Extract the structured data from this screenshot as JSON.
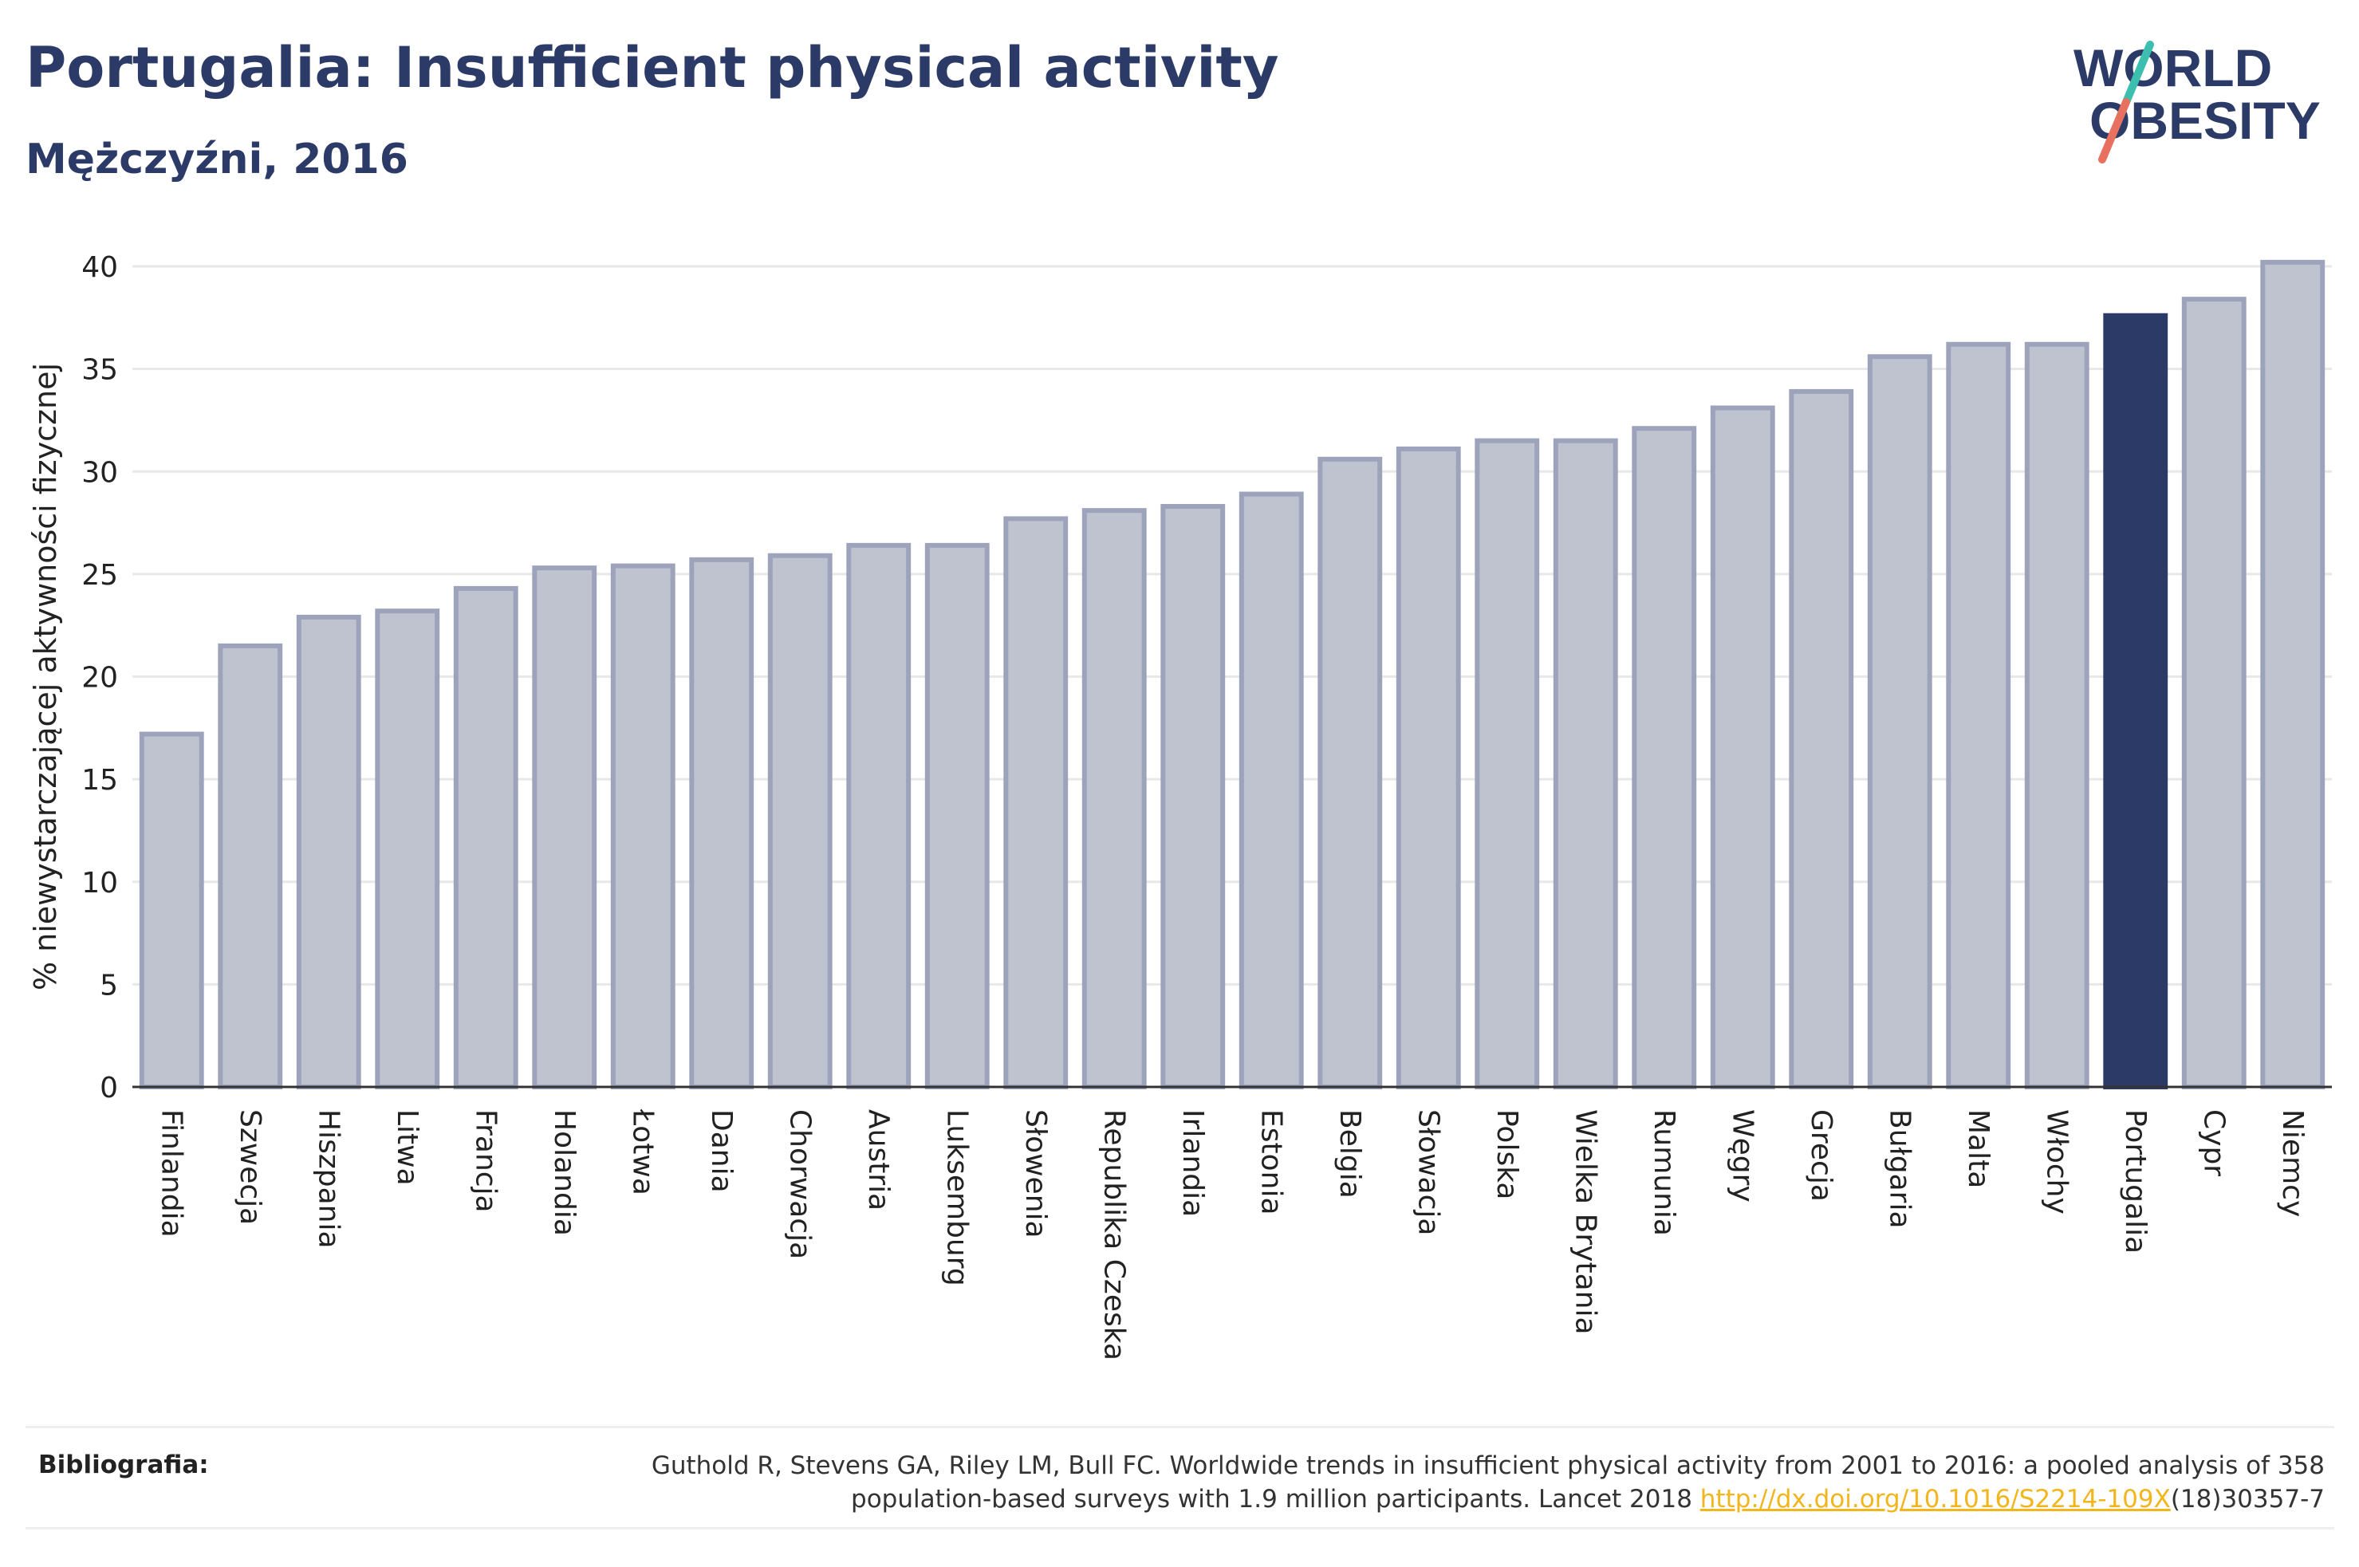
{
  "header": {
    "title": "Portugalia: Insufficient physical activity",
    "subtitle": "Mężczyźni, 2016"
  },
  "logo": {
    "line1": "WORLD",
    "line2": "OBESITY",
    "accent_teal": "#3cbfae",
    "accent_coral": "#e8705f",
    "color": "#2b3a67"
  },
  "colors": {
    "bar": "#bfc2cf",
    "bar_border": "#9da3bb",
    "highlight": "#2b3a67",
    "grid": "#e8e8e8",
    "axis": "#333333"
  },
  "chart_data": {
    "type": "bar",
    "ylabel": "% niewystarczającej aktywności fizycznej",
    "ylim": [
      0,
      40
    ],
    "yticks": [
      0,
      5,
      10,
      15,
      20,
      25,
      30,
      35,
      40
    ],
    "grid": true,
    "highlight": "Portugalia",
    "categories": [
      "Finlandia",
      "Szwecja",
      "Hiszpania",
      "Litwa",
      "Francja",
      "Holandia",
      "Łotwa",
      "Dania",
      "Chorwacja",
      "Austria",
      "Luksemburg",
      "Słowenia",
      "Republika Czeska",
      "Irlandia",
      "Estonia",
      "Belgia",
      "Słowacja",
      "Polska",
      "Wielka Brytania",
      "Rumunia",
      "Węgry",
      "Grecja",
      "Bułgaria",
      "Malta",
      "Włochy",
      "Portugalia",
      "Cypr",
      "Niemcy"
    ],
    "values": [
      17.2,
      21.5,
      22.9,
      23.2,
      24.3,
      25.3,
      25.4,
      25.7,
      25.9,
      26.4,
      26.4,
      27.7,
      28.1,
      28.3,
      28.9,
      30.6,
      31.1,
      31.5,
      31.5,
      32.1,
      33.1,
      33.9,
      35.6,
      36.2,
      36.2,
      37.6,
      38.4,
      40.2
    ]
  },
  "reference": {
    "label": "Bibliografia:",
    "line1": "Guthold R, Stevens GA, Riley LM, Bull FC. Worldwide trends in insufficient physical activity from 2001 to 2016: a pooled analysis of 358",
    "line2_before": "population-based surveys with 1.9 million participants. Lancet 2018 ",
    "link": "http://dx.doi.org/10.1016/S2214-109X",
    "line2_after": "(18)30357-7"
  }
}
